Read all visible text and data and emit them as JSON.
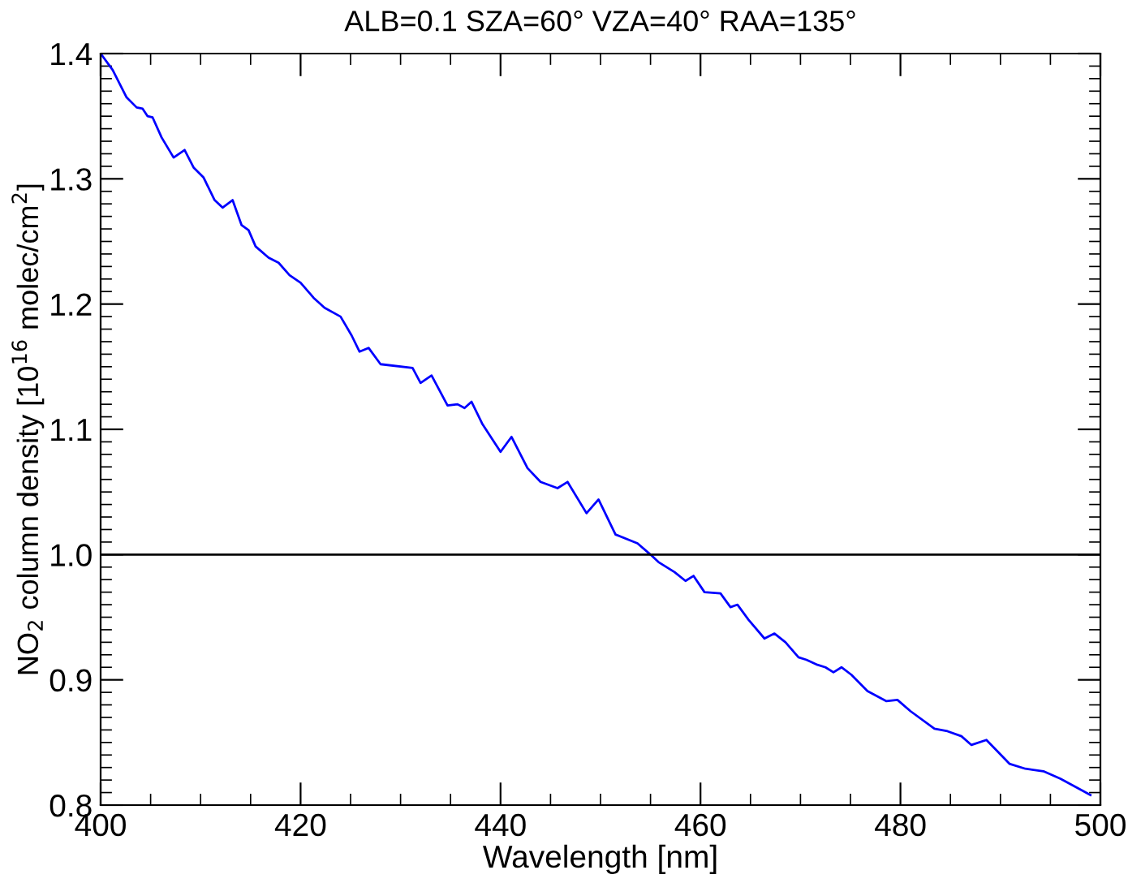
{
  "chart_data": {
    "type": "line",
    "title": "ALB=0.1 SZA=60° VZA=40° RAA=135°",
    "xlabel": "Wavelength [nm]",
    "ylabel": "NO$_{2}$ column density [10$^{16}$ molec/cm$^{2}$]",
    "xlim": [
      400,
      500
    ],
    "xticks": [
      400,
      420,
      440,
      460,
      480,
      500
    ],
    "ylim": [
      0.8,
      1.4
    ],
    "yticks": [
      {
        "value": 0.8,
        "label": "0.8"
      },
      {
        "value": 0.9,
        "label": "0.9"
      },
      {
        "value": 1.0,
        "label": "1.0"
      },
      {
        "value": 1.1,
        "label": "1.1"
      },
      {
        "value": 1.2,
        "label": "1.2"
      },
      {
        "value": 1.3,
        "label": "1.3"
      },
      {
        "value": 1.4,
        "label": "1.4"
      }
    ],
    "grid": false,
    "legend": false,
    "ref_lines": [
      {
        "axis": "y",
        "value": 1.0,
        "color": "#000000"
      }
    ],
    "series": [
      {
        "color": "#0000ff",
        "x": [
          400,
          401.2,
          402.6,
          403.6,
          404.2,
          404.7,
          405.2,
          406.1,
          407.3,
          408.4,
          409.3,
          410.3,
          411.4,
          412.2,
          413.2,
          414.1,
          414.8,
          415.5,
          416.8,
          417.8,
          418.9,
          420.0,
          421.3,
          422.4,
          424.0,
          425.1,
          425.9,
          426.8,
          428.0,
          431.2,
          432.0,
          433.1,
          434.7,
          435.7,
          436.4,
          437.1,
          438.2,
          440.0,
          441.1,
          442.7,
          444.0,
          445.7,
          446.7,
          448.6,
          449.8,
          451.5,
          453.7,
          455.0,
          455.8,
          457.4,
          458.5,
          459.3,
          460.4,
          462.0,
          463.0,
          463.7,
          464.8,
          466.4,
          467.4,
          468.5,
          469.8,
          470.6,
          471.7,
          472.5,
          473.3,
          474.1,
          475.1,
          476.7,
          478.6,
          479.7,
          481.0,
          483.4,
          484.7,
          486.1,
          487.1,
          488.6,
          490.9,
          492.5,
          494.3,
          496.0,
          498.1,
          499.0
        ],
        "values": [
          1.4,
          1.387,
          1.365,
          1.357,
          1.356,
          1.35,
          1.349,
          1.333,
          1.317,
          1.323,
          1.309,
          1.301,
          1.283,
          1.277,
          1.283,
          1.263,
          1.259,
          1.246,
          1.237,
          1.233,
          1.223,
          1.217,
          1.205,
          1.197,
          1.19,
          1.175,
          1.162,
          1.165,
          1.152,
          1.149,
          1.137,
          1.143,
          1.119,
          1.12,
          1.117,
          1.122,
          1.104,
          1.082,
          1.094,
          1.069,
          1.058,
          1.053,
          1.058,
          1.033,
          1.044,
          1.016,
          1.009,
          1.0,
          0.994,
          0.986,
          0.979,
          0.983,
          0.97,
          0.969,
          0.958,
          0.96,
          0.948,
          0.933,
          0.937,
          0.93,
          0.918,
          0.916,
          0.912,
          0.91,
          0.906,
          0.91,
          0.904,
          0.891,
          0.883,
          0.884,
          0.875,
          0.861,
          0.859,
          0.855,
          0.848,
          0.852,
          0.833,
          0.829,
          0.827,
          0.821,
          0.812,
          0.808
        ]
      }
    ]
  }
}
